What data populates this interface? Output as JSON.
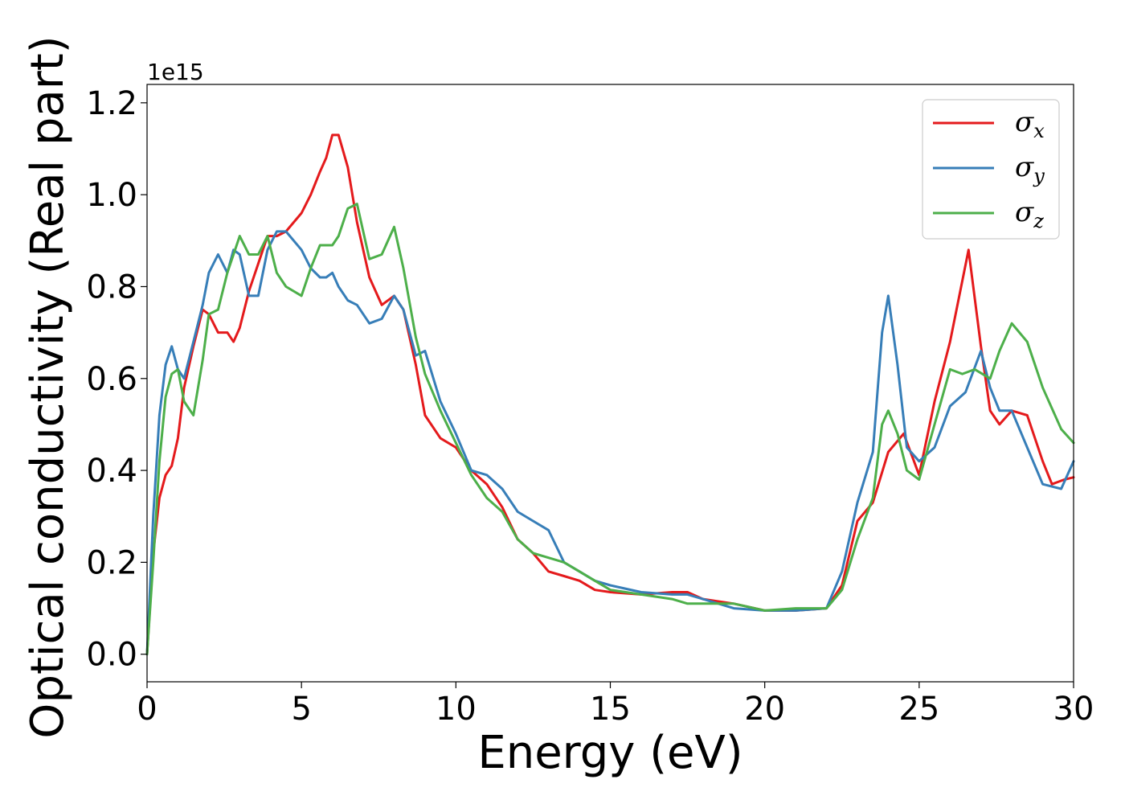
{
  "chart_data": {
    "type": "line",
    "xlabel": "Energy (eV)",
    "ylabel": "Optical conductivity (Real part)",
    "y_offset_label": "1e15",
    "xlim": [
      0,
      30
    ],
    "ylim": [
      -0.06,
      1.24
    ],
    "xticks": [
      0,
      5,
      10,
      15,
      20,
      25,
      30
    ],
    "xtick_labels": [
      "0",
      "5",
      "10",
      "15",
      "20",
      "25",
      "30"
    ],
    "yticks": [
      0.0,
      0.2,
      0.4,
      0.6,
      0.8,
      1.0,
      1.2
    ],
    "ytick_labels": [
      "0.0",
      "0.2",
      "0.4",
      "0.6",
      "0.8",
      "1.0",
      "1.2"
    ],
    "grid": false,
    "legend_position": "top-right",
    "series": [
      {
        "name": "σx",
        "legend_symbol": "σ",
        "legend_sub": "x",
        "color": "#e41a1c",
        "x": [
          0,
          0.2,
          0.4,
          0.6,
          0.8,
          1.0,
          1.2,
          1.5,
          1.8,
          2.0,
          2.3,
          2.6,
          2.8,
          3.0,
          3.3,
          3.6,
          3.9,
          4.2,
          4.5,
          5.0,
          5.3,
          5.6,
          5.8,
          6.0,
          6.2,
          6.5,
          6.8,
          7.2,
          7.6,
          8.0,
          8.3,
          8.7,
          9.0,
          9.5,
          10.0,
          10.5,
          11.0,
          11.5,
          12.0,
          12.5,
          13.0,
          13.5,
          14.0,
          14.5,
          15.0,
          16.0,
          17.0,
          17.5,
          18.0,
          19.0,
          20.0,
          21.0,
          22.0,
          22.5,
          23.0,
          23.5,
          24.0,
          24.5,
          25.0,
          25.5,
          26.0,
          26.3,
          26.6,
          27.0,
          27.3,
          27.6,
          28.0,
          28.5,
          29.0,
          29.3,
          29.7,
          30.0
        ],
        "y": [
          0.0,
          0.22,
          0.34,
          0.39,
          0.41,
          0.47,
          0.58,
          0.67,
          0.75,
          0.74,
          0.7,
          0.7,
          0.68,
          0.71,
          0.79,
          0.85,
          0.91,
          0.91,
          0.92,
          0.96,
          1.0,
          1.05,
          1.08,
          1.13,
          1.13,
          1.06,
          0.94,
          0.82,
          0.76,
          0.78,
          0.75,
          0.63,
          0.52,
          0.47,
          0.45,
          0.4,
          0.37,
          0.32,
          0.25,
          0.22,
          0.18,
          0.17,
          0.16,
          0.14,
          0.135,
          0.13,
          0.135,
          0.135,
          0.12,
          0.11,
          0.095,
          0.095,
          0.1,
          0.15,
          0.29,
          0.33,
          0.44,
          0.48,
          0.39,
          0.55,
          0.68,
          0.78,
          0.88,
          0.67,
          0.53,
          0.5,
          0.53,
          0.52,
          0.42,
          0.37,
          0.38,
          0.385
        ]
      },
      {
        "name": "σy",
        "legend_symbol": "σ",
        "legend_sub": "y",
        "color": "#377eb8",
        "x": [
          0,
          0.2,
          0.4,
          0.6,
          0.8,
          1.0,
          1.2,
          1.5,
          1.8,
          2.0,
          2.3,
          2.6,
          2.8,
          3.0,
          3.3,
          3.6,
          3.9,
          4.2,
          4.5,
          5.0,
          5.3,
          5.6,
          5.8,
          6.0,
          6.2,
          6.5,
          6.8,
          7.2,
          7.6,
          8.0,
          8.3,
          8.7,
          9.0,
          9.5,
          10.0,
          10.5,
          11.0,
          11.5,
          12.0,
          12.5,
          13.0,
          13.5,
          14.0,
          14.5,
          15.0,
          16.0,
          17.0,
          17.5,
          18.0,
          19.0,
          20.0,
          21.0,
          22.0,
          22.5,
          23.0,
          23.5,
          23.8,
          24.0,
          24.3,
          24.6,
          25.0,
          25.5,
          26.0,
          26.5,
          27.0,
          27.3,
          27.6,
          28.0,
          28.5,
          29.0,
          29.6,
          30.0
        ],
        "y": [
          0.0,
          0.3,
          0.52,
          0.63,
          0.67,
          0.62,
          0.6,
          0.68,
          0.76,
          0.83,
          0.87,
          0.83,
          0.88,
          0.87,
          0.78,
          0.78,
          0.88,
          0.92,
          0.92,
          0.88,
          0.84,
          0.82,
          0.82,
          0.83,
          0.8,
          0.77,
          0.76,
          0.72,
          0.73,
          0.78,
          0.75,
          0.65,
          0.66,
          0.55,
          0.48,
          0.4,
          0.39,
          0.36,
          0.31,
          0.29,
          0.27,
          0.2,
          0.18,
          0.16,
          0.15,
          0.135,
          0.13,
          0.13,
          0.12,
          0.1,
          0.095,
          0.095,
          0.1,
          0.18,
          0.33,
          0.44,
          0.7,
          0.78,
          0.63,
          0.45,
          0.42,
          0.45,
          0.54,
          0.57,
          0.66,
          0.58,
          0.53,
          0.53,
          0.45,
          0.37,
          0.36,
          0.42
        ]
      },
      {
        "name": "σz",
        "legend_symbol": "σ",
        "legend_sub": "z",
        "color": "#4daf4a",
        "x": [
          0,
          0.2,
          0.4,
          0.6,
          0.8,
          1.0,
          1.2,
          1.5,
          1.8,
          2.0,
          2.3,
          2.6,
          2.8,
          3.0,
          3.3,
          3.6,
          3.9,
          4.2,
          4.5,
          5.0,
          5.3,
          5.6,
          5.8,
          6.0,
          6.2,
          6.5,
          6.8,
          7.2,
          7.6,
          8.0,
          8.3,
          8.7,
          9.0,
          9.5,
          10.0,
          10.5,
          11.0,
          11.5,
          12.0,
          12.5,
          13.0,
          13.5,
          14.0,
          14.5,
          15.0,
          16.0,
          17.0,
          17.5,
          18.0,
          19.0,
          20.0,
          21.0,
          22.0,
          22.5,
          23.0,
          23.5,
          23.8,
          24.0,
          24.3,
          24.6,
          25.0,
          25.5,
          26.0,
          26.4,
          26.8,
          27.3,
          27.6,
          28.0,
          28.5,
          29.0,
          29.6,
          30.0
        ],
        "y": [
          0.0,
          0.2,
          0.42,
          0.56,
          0.61,
          0.62,
          0.55,
          0.52,
          0.64,
          0.74,
          0.75,
          0.83,
          0.87,
          0.91,
          0.87,
          0.87,
          0.91,
          0.83,
          0.8,
          0.78,
          0.84,
          0.89,
          0.89,
          0.89,
          0.91,
          0.97,
          0.98,
          0.86,
          0.87,
          0.93,
          0.84,
          0.69,
          0.61,
          0.53,
          0.46,
          0.39,
          0.34,
          0.31,
          0.25,
          0.22,
          0.21,
          0.2,
          0.18,
          0.16,
          0.14,
          0.13,
          0.12,
          0.11,
          0.11,
          0.11,
          0.095,
          0.1,
          0.1,
          0.14,
          0.25,
          0.34,
          0.5,
          0.53,
          0.48,
          0.4,
          0.38,
          0.5,
          0.62,
          0.61,
          0.62,
          0.6,
          0.66,
          0.72,
          0.68,
          0.58,
          0.49,
          0.46
        ]
      }
    ]
  }
}
